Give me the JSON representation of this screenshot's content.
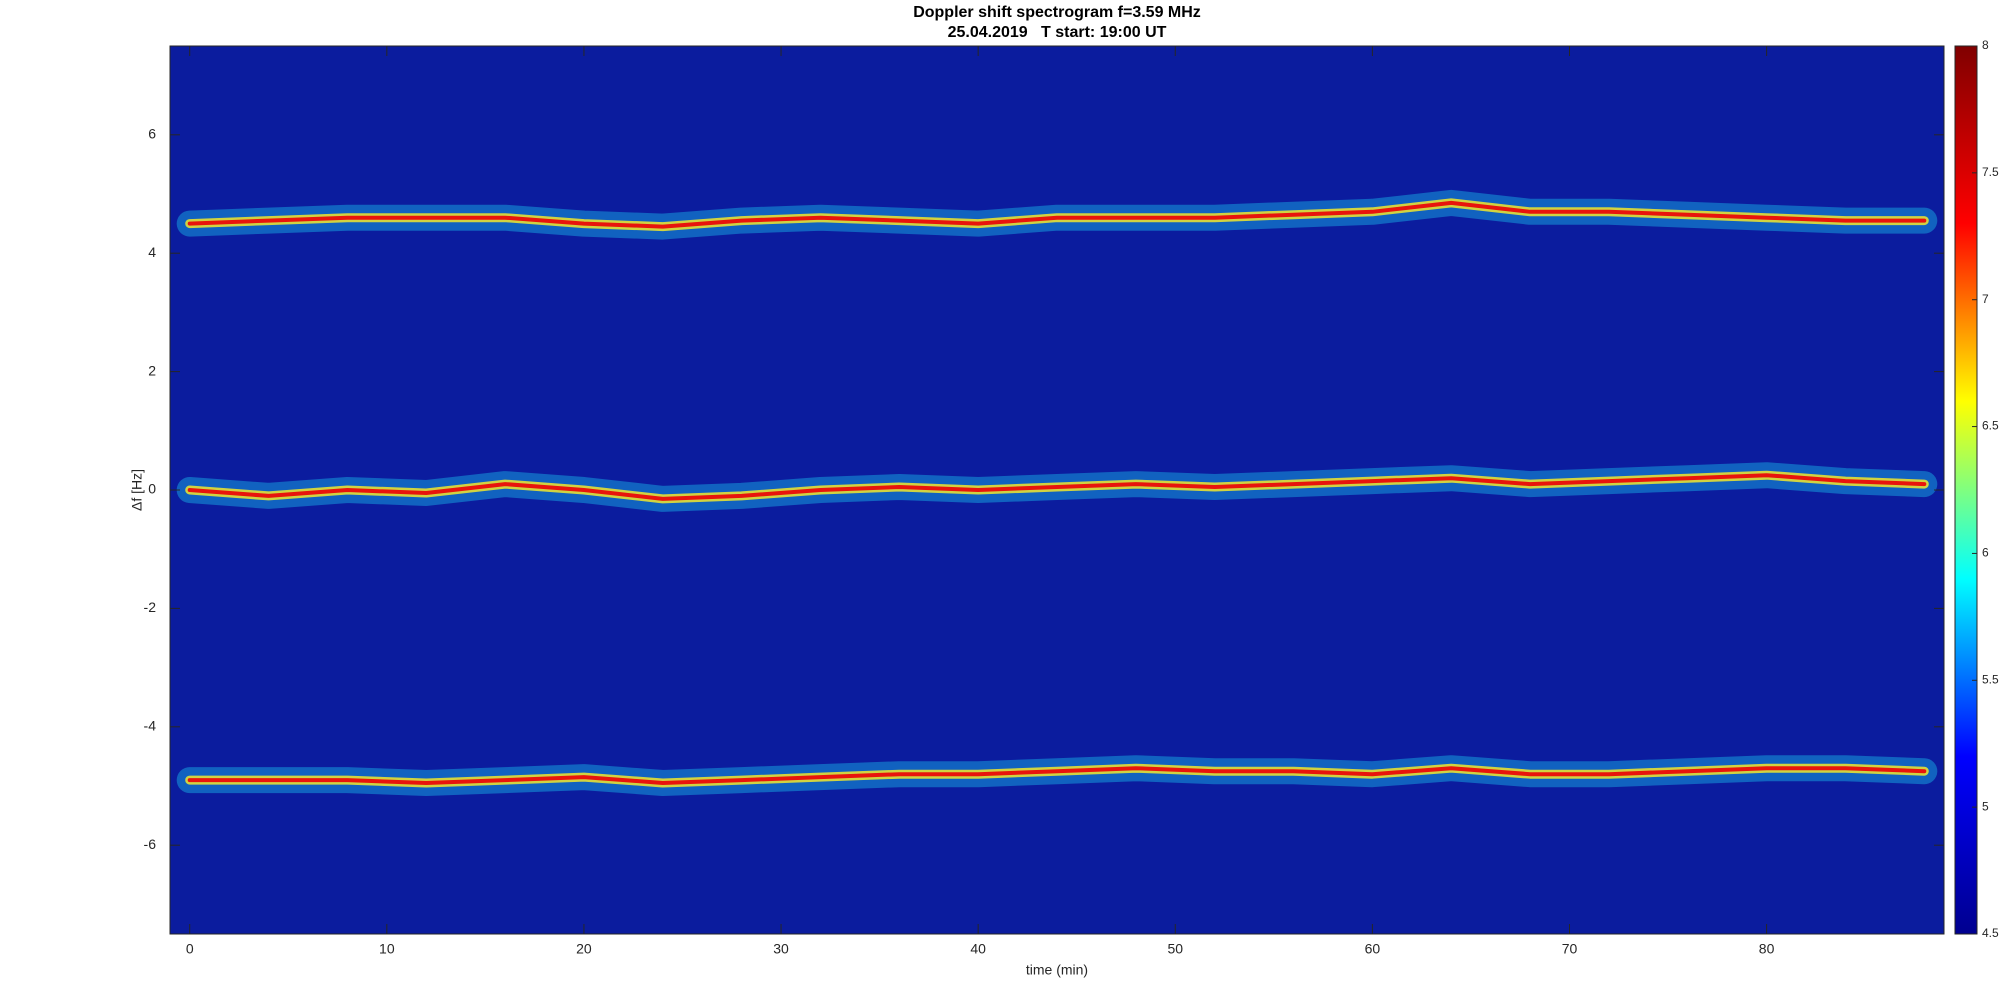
{
  "chart_data": {
    "type": "spectrogram",
    "title": "Doppler shift spectrogram f=3.59 MHz",
    "subtitle": "25.04.2019   T start: 19:00 UT",
    "x_label": "time (min)",
    "y_label": "Δf [Hz]",
    "xlim": [
      -1,
      89
    ],
    "ylim": [
      -7.5,
      7.5
    ],
    "xticks": [
      0,
      10,
      20,
      30,
      40,
      50,
      60,
      70,
      80
    ],
    "yticks": [
      -6,
      -4,
      -2,
      0,
      2,
      4,
      6
    ],
    "background_color": "#0b1c9e",
    "x": [
      0,
      4,
      8,
      12,
      16,
      20,
      24,
      28,
      32,
      36,
      40,
      44,
      48,
      52,
      56,
      60,
      64,
      68,
      72,
      76,
      80,
      84,
      88
    ],
    "series": [
      {
        "color": "#e8140c",
        "values": [
          4.5,
          4.55,
          4.6,
          4.6,
          4.6,
          4.5,
          4.45,
          4.55,
          4.6,
          4.55,
          4.5,
          4.6,
          4.6,
          4.6,
          4.65,
          4.7,
          4.85,
          4.7,
          4.7,
          4.65,
          4.6,
          4.55,
          4.55
        ]
      },
      {
        "color": "#e8140c",
        "values": [
          0,
          -0.1,
          0,
          -0.05,
          0.1,
          0,
          -0.15,
          -0.1,
          0,
          0.05,
          0,
          0.05,
          0.1,
          0.05,
          0.1,
          0.15,
          0.2,
          0.1,
          0.15,
          0.2,
          0.25,
          0.15,
          0.1
        ]
      },
      {
        "color": "#e8140c",
        "values": [
          -4.9,
          -4.9,
          -4.9,
          -4.95,
          -4.9,
          -4.85,
          -4.95,
          -4.9,
          -4.85,
          -4.8,
          -4.8,
          -4.75,
          -4.7,
          -4.75,
          -4.75,
          -4.8,
          -4.7,
          -4.8,
          -4.8,
          -4.75,
          -4.7,
          -4.7,
          -4.75
        ]
      }
    ],
    "clim": [
      4.5,
      8
    ],
    "cticks": [
      4.5,
      5,
      5.5,
      6,
      6.5,
      7,
      7.5,
      8
    ],
    "colormap": [
      "#00008f",
      "#0000ff",
      "#00ffff",
      "#ffff00",
      "#ff0000",
      "#800000"
    ]
  }
}
